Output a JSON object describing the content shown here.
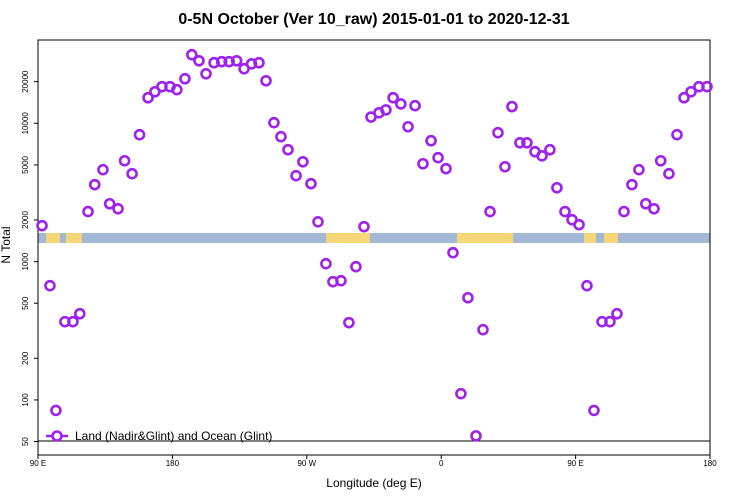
{
  "chart_data": {
    "type": "scatter",
    "title": "0-5N October (Ver 10_raw)   2015-01-01 to 2020-12-31",
    "x_label": "Longitude (deg E)",
    "y_label": "N Total",
    "log_y": true,
    "legend": "bottom-left",
    "xlim": [
      90,
      540
    ],
    "xticks": [
      {
        "value": 90,
        "label": "90 E"
      },
      180,
      {
        "value": 270,
        "label": "90 W"
      },
      {
        "value": 360,
        "label": "0"
      },
      {
        "value": 450,
        "label": "90 E"
      },
      {
        "value": 540,
        "label": "180"
      }
    ],
    "ylim": [
      40,
      40000
    ],
    "yticks": [
      50,
      100,
      200,
      500,
      1000,
      2000,
      5000,
      10000,
      20000
    ],
    "series": [
      {
        "name": "Land (Nadir&Glint) and Ocean (Glint)",
        "color": "#a020f0",
        "x": [
          92.7,
          98,
          102,
          108,
          113.4,
          118,
          123.5,
          128,
          133.5,
          138,
          143.6,
          148,
          153,
          158,
          163.7,
          168.3,
          173,
          178.4,
          183,
          188.4,
          193,
          197.8,
          202.5,
          207.9,
          213,
          218,
          223,
          228,
          233,
          238,
          242.7,
          248,
          252.7,
          257.4,
          262.8,
          267.4,
          272.8,
          277.5,
          282.8,
          287.5,
          292.9,
          298.2,
          302.9,
          308.3,
          313,
          318.3,
          323,
          327.8,
          333,
          337.8,
          342.5,
          347.8,
          353.2,
          357.9,
          363.2,
          367.9,
          373.2,
          377.9,
          383.3,
          388,
          392.7,
          398,
          402.7,
          407.4,
          412.7,
          417.4,
          422.8,
          427.5,
          432.8,
          437.5,
          442.9,
          447.6,
          452.3,
          457.6,
          462.3,
          467.7,
          473,
          477.7,
          482.4,
          487.7,
          492.4,
          497,
          502.5,
          507,
          512.5,
          517.9,
          522.6,
          527.3,
          532.6,
          538
        ],
        "values": [
          1820,
          670,
          84,
          368,
          368,
          420,
          2300,
          3600,
          4620,
          2620,
          2410,
          5360,
          4320,
          8270,
          15300,
          16900,
          18400,
          18400,
          17500,
          21000,
          31300,
          28300,
          22800,
          27400,
          27900,
          27900,
          28300,
          24800,
          26900,
          27400,
          20300,
          10100,
          8000,
          6440,
          4180,
          5270,
          3660,
          1940,
          966,
          716,
          728,
          362,
          919,
          1790,
          11100,
          11900,
          12500,
          15300,
          13800,
          9440,
          13400,
          5100,
          7480,
          5640,
          4700,
          1160,
          111,
          548,
          55,
          322,
          2300,
          8550,
          4850,
          13200,
          7230,
          7230,
          6230,
          5820,
          6440,
          3420,
          2300,
          2010,
          1850,
          670,
          84,
          368,
          368,
          420,
          2300,
          3600,
          4620,
          2620,
          2410,
          5360,
          4320,
          8270,
          15300,
          16900,
          18400,
          18400
        ]
      }
    ]
  }
}
